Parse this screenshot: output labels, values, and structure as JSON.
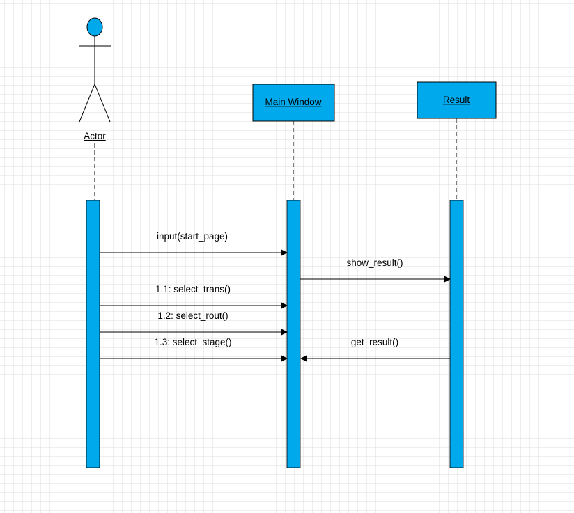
{
  "colors": {
    "canvas_background": "#ffffff",
    "grid_line": "#dcdcdc",
    "lifeline_fill": "#00a8ec",
    "stroke": "#000000"
  },
  "participants": {
    "actor": {
      "label": "Actor"
    },
    "main_window": {
      "label": "Main Window"
    },
    "result": {
      "label": "Result"
    }
  },
  "messages": [
    {
      "label": "input(start_page)",
      "from": "Actor",
      "to": "Main Window"
    },
    {
      "label": "show_result()",
      "from": "Main Window",
      "to": "Result"
    },
    {
      "label": "1.1: select_trans()",
      "from": "Actor",
      "to": "Main Window"
    },
    {
      "label": "1.2: select_rout()",
      "from": "Actor",
      "to": "Main Window"
    },
    {
      "label": "1.3: select_stage()",
      "from": "Actor",
      "to": "Main Window"
    },
    {
      "label": "get_result()",
      "from": "Result",
      "to": "Main Window"
    }
  ]
}
